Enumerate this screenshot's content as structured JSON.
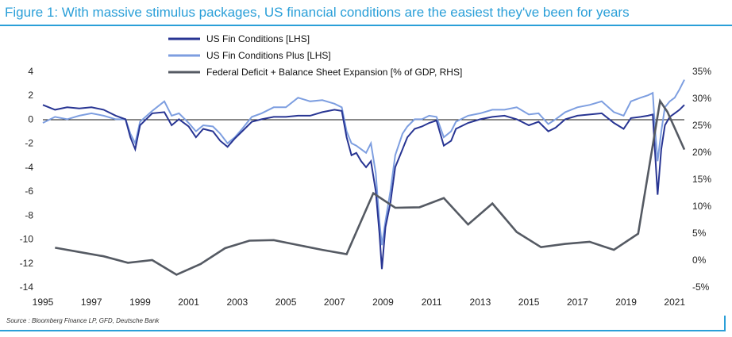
{
  "figure": {
    "title": "Figure 1: With massive stimulus packages, US financial conditions are the easiest they've been for years",
    "source": "Source : Bloomberg Finance LP, GFD, Deutsche Bank"
  },
  "colors": {
    "title": "#2a9fd8",
    "fci": "#283593",
    "fci_plus": "#7d9ee0",
    "deficit": "#555a63"
  },
  "chart_data": {
    "type": "line",
    "x_ticks": [
      "1995",
      "1997",
      "1999",
      "2001",
      "2003",
      "2005",
      "2007",
      "2009",
      "2011",
      "2013",
      "2015",
      "2017",
      "2019",
      "2021"
    ],
    "x_range": [
      1995.0,
      2021.4
    ],
    "y_left": {
      "label": "",
      "range": [
        -14,
        4
      ],
      "ticks": [
        "4",
        "2",
        "0",
        "-2",
        "-4",
        "-6",
        "-8",
        "-10",
        "-12",
        "-14"
      ]
    },
    "y_right": {
      "label": "",
      "range": [
        -5,
        35
      ],
      "ticks": [
        "35%",
        "30%",
        "25%",
        "20%",
        "15%",
        "10%",
        "5%",
        "0%",
        "-5%"
      ]
    },
    "legend_position": "top-center",
    "series": [
      {
        "name": "US Fin Conditions [LHS]",
        "axis": "left",
        "x": [
          1995.0,
          1995.5,
          1996.0,
          1996.5,
          1997.0,
          1997.5,
          1998.0,
          1998.4,
          1998.6,
          1998.8,
          1999.0,
          1999.5,
          2000.0,
          2000.3,
          2000.6,
          2001.0,
          2001.3,
          2001.6,
          2002.0,
          2002.3,
          2002.6,
          2002.9,
          2003.2,
          2003.6,
          2004.0,
          2004.5,
          2005.0,
          2005.5,
          2006.0,
          2006.5,
          2007.0,
          2007.3,
          2007.5,
          2007.7,
          2007.9,
          2008.1,
          2008.3,
          2008.5,
          2008.7,
          2008.85,
          2008.95,
          2009.1,
          2009.3,
          2009.5,
          2009.8,
          2010.0,
          2010.3,
          2010.6,
          2010.9,
          2011.2,
          2011.5,
          2011.8,
          2012.0,
          2012.5,
          2013.0,
          2013.5,
          2014.0,
          2014.5,
          2015.0,
          2015.4,
          2015.8,
          2016.1,
          2016.5,
          2017.0,
          2017.5,
          2018.0,
          2018.5,
          2018.9,
          2019.2,
          2019.6,
          2019.9,
          2020.1,
          2020.2,
          2020.3,
          2020.45,
          2020.6,
          2020.8,
          2021.0,
          2021.2,
          2021.4
        ],
        "y": [
          1.2,
          0.8,
          1.0,
          0.9,
          1.0,
          0.8,
          0.3,
          0.0,
          -1.5,
          -2.5,
          -0.5,
          0.5,
          0.6,
          -0.5,
          0.0,
          -0.6,
          -1.5,
          -0.8,
          -1.0,
          -1.8,
          -2.3,
          -1.6,
          -1.0,
          -0.2,
          0.0,
          0.2,
          0.2,
          0.3,
          0.3,
          0.6,
          0.8,
          0.7,
          -1.5,
          -3.0,
          -2.8,
          -3.5,
          -4.0,
          -3.5,
          -6.0,
          -9.5,
          -12.5,
          -9.0,
          -7.0,
          -4.0,
          -2.5,
          -1.5,
          -0.8,
          -0.6,
          -0.3,
          -0.1,
          -2.2,
          -1.8,
          -0.8,
          -0.3,
          0.0,
          0.2,
          0.3,
          0.0,
          -0.5,
          -0.2,
          -1.0,
          -0.7,
          0.0,
          0.3,
          0.4,
          0.5,
          -0.3,
          -0.8,
          0.1,
          0.2,
          0.3,
          0.4,
          -3.0,
          -6.3,
          -2.5,
          -0.5,
          0.2,
          0.5,
          0.8,
          1.2
        ]
      },
      {
        "name": "US Fin Conditions Plus [LHS]",
        "axis": "left",
        "x": [
          1995.0,
          1995.5,
          1996.0,
          1996.5,
          1997.0,
          1997.5,
          1998.0,
          1998.4,
          1998.6,
          1998.8,
          1999.0,
          1999.5,
          2000.0,
          2000.3,
          2000.6,
          2001.0,
          2001.3,
          2001.6,
          2002.0,
          2002.3,
          2002.6,
          2002.9,
          2003.2,
          2003.6,
          2004.0,
          2004.5,
          2005.0,
          2005.5,
          2006.0,
          2006.5,
          2007.0,
          2007.3,
          2007.5,
          2007.7,
          2007.9,
          2008.1,
          2008.3,
          2008.5,
          2008.7,
          2008.85,
          2008.95,
          2009.1,
          2009.3,
          2009.5,
          2009.8,
          2010.0,
          2010.3,
          2010.6,
          2010.9,
          2011.2,
          2011.5,
          2011.8,
          2012.0,
          2012.5,
          2013.0,
          2013.5,
          2014.0,
          2014.5,
          2015.0,
          2015.4,
          2015.8,
          2016.1,
          2016.5,
          2017.0,
          2017.5,
          2018.0,
          2018.5,
          2018.9,
          2019.2,
          2019.6,
          2019.9,
          2020.1,
          2020.2,
          2020.3,
          2020.45,
          2020.6,
          2020.8,
          2021.0,
          2021.2,
          2021.4
        ],
        "y": [
          -0.3,
          0.2,
          0.0,
          0.3,
          0.5,
          0.3,
          0.0,
          0.0,
          -1.2,
          -2.0,
          -0.2,
          0.7,
          1.5,
          0.3,
          0.5,
          -0.3,
          -1.0,
          -0.5,
          -0.6,
          -1.2,
          -2.0,
          -1.5,
          -0.8,
          0.2,
          0.5,
          1.0,
          1.0,
          1.8,
          1.5,
          1.6,
          1.3,
          1.0,
          -1.0,
          -2.0,
          -2.2,
          -2.5,
          -2.8,
          -2.0,
          -4.5,
          -8.5,
          -10.5,
          -8.5,
          -6.0,
          -3.0,
          -1.2,
          -0.6,
          0.0,
          0.0,
          0.3,
          0.2,
          -1.5,
          -1.0,
          -0.2,
          0.3,
          0.5,
          0.8,
          0.8,
          1.0,
          0.4,
          0.5,
          -0.4,
          0.0,
          0.6,
          1.0,
          1.2,
          1.5,
          0.6,
          0.3,
          1.5,
          1.8,
          2.0,
          2.2,
          -1.0,
          -3.5,
          -1.0,
          1.0,
          1.5,
          1.8,
          2.5,
          3.3
        ]
      },
      {
        "name": "Federal Deficit + Balance Sheet Expansion [% of GDP, RHS]",
        "axis": "right",
        "x": [
          1995.5,
          1996.5,
          1997.5,
          1998.5,
          1999.5,
          2000.5,
          2001.5,
          2002.5,
          2003.5,
          2004.5,
          2005.5,
          2006.5,
          2007.5,
          2008.6,
          2009.5,
          2010.5,
          2011.5,
          2012.5,
          2013.5,
          2014.5,
          2015.5,
          2016.5,
          2017.5,
          2018.5,
          2019.5,
          2020.4,
          2020.7,
          2021.0,
          2021.4
        ],
        "y": [
          2.3,
          1.5,
          0.7,
          -0.5,
          0.0,
          -2.7,
          -0.7,
          2.2,
          3.6,
          3.7,
          2.8,
          1.9,
          1.1,
          12.4,
          9.7,
          9.8,
          11.5,
          6.6,
          10.5,
          5.2,
          2.4,
          3.0,
          3.4,
          1.9,
          4.9,
          29.5,
          27.5,
          24.5,
          20.5
        ]
      }
    ]
  }
}
